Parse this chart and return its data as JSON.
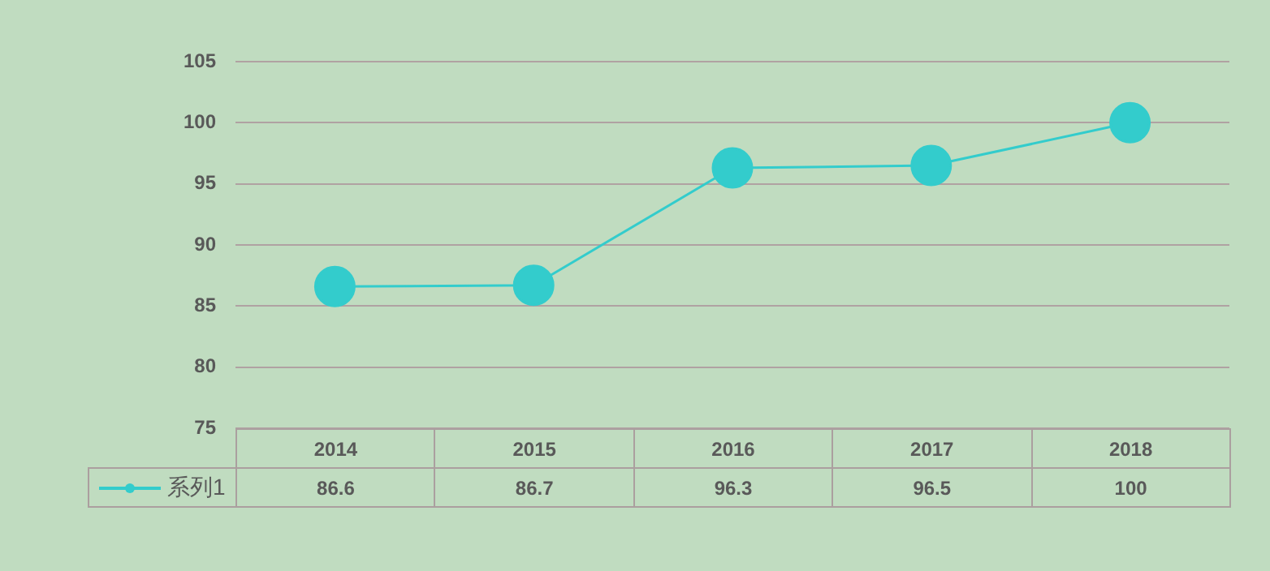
{
  "chart_data": {
    "type": "line",
    "categories": [
      "2014",
      "2015",
      "2016",
      "2017",
      "2018"
    ],
    "series": [
      {
        "name": "系列1",
        "color": "#33cccc",
        "values": [
          86.6,
          86.7,
          96.3,
          96.5,
          100
        ]
      }
    ],
    "ylim": [
      75,
      105
    ],
    "yticks": [
      75,
      80,
      85,
      90,
      95,
      100,
      105
    ],
    "grid": "y",
    "legend": "bottom left",
    "marker": "circle",
    "data_labels": true
  }
}
